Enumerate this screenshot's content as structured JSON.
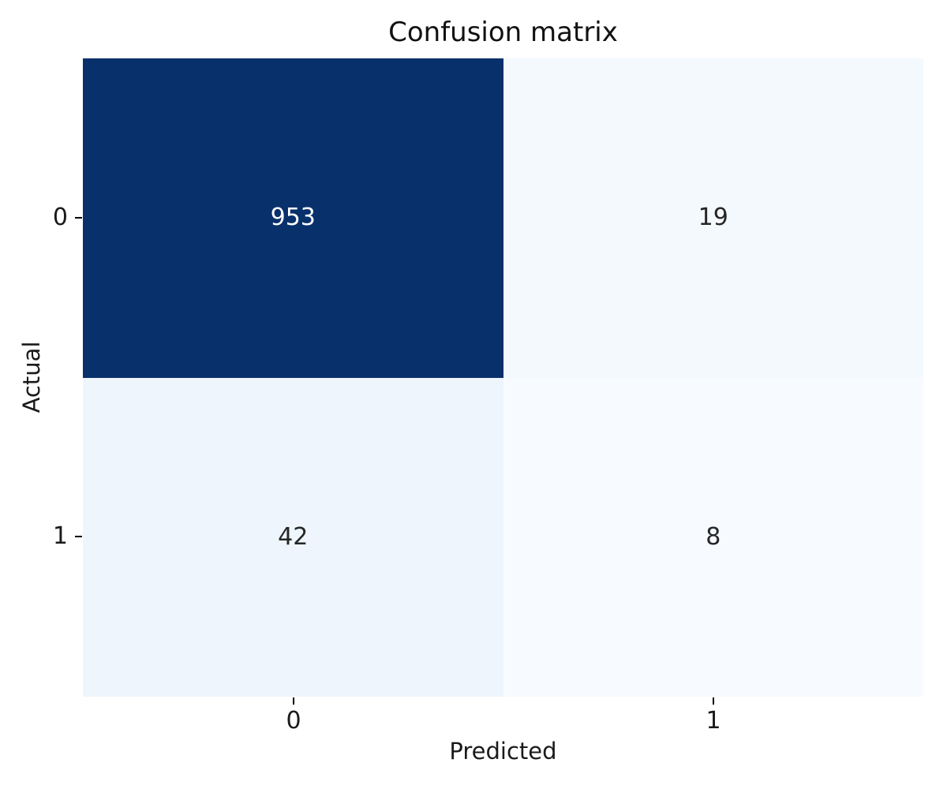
{
  "title": "Confusion matrix",
  "chart_data": {
    "type": "heatmap",
    "title": "Confusion matrix",
    "xlabel": "Predicted",
    "ylabel": "Actual",
    "x_tick_labels": [
      "0",
      "1"
    ],
    "y_tick_labels": [
      "0",
      "1"
    ],
    "rows": [
      [
        953,
        19
      ],
      [
        42,
        8
      ]
    ],
    "vmin": 8,
    "vmax": 953,
    "colormap": "Blues",
    "colorbar": false,
    "grid": false,
    "legend": "none",
    "cells": [
      {
        "actual": "0",
        "predicted": "0",
        "value": "953",
        "bg": "#08306b",
        "text_color": "#ffffff"
      },
      {
        "actual": "0",
        "predicted": "1",
        "value": "19",
        "bg": "#f4f9fe",
        "text_color": "#262626"
      },
      {
        "actual": "1",
        "predicted": "0",
        "value": "42",
        "bg": "#eef5fc",
        "text_color": "#262626"
      },
      {
        "actual": "1",
        "predicted": "1",
        "value": "8",
        "bg": "#f7fbff",
        "text_color": "#262626"
      }
    ]
  }
}
